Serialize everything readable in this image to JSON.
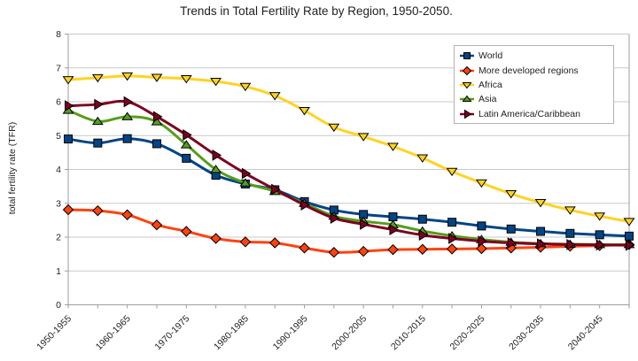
{
  "chart_data": {
    "type": "line",
    "title": "Trends in Total Fertility Rate by Region, 1950-2050.",
    "xlabel": "",
    "ylabel": "total fertility rate (TFR)",
    "ylim": [
      0,
      8
    ],
    "y_ticks": [
      0,
      1,
      2,
      3,
      4,
      5,
      6,
      7,
      8
    ],
    "grid": true,
    "legend_position": "top-right",
    "x_label_every": 2,
    "categories": [
      "1950-1955",
      "1955-1960",
      "1960-1965",
      "1965-1970",
      "1970-1975",
      "1975-1980",
      "1980-1985",
      "1985-1990",
      "1990-1995",
      "1995-2000",
      "2000-2005",
      "2005-2010",
      "2010-2015",
      "2015-2020",
      "2020-2025",
      "2025-2030",
      "2030-2035",
      "2035-2040",
      "2040-2045",
      "2045-2050"
    ],
    "shown_x_tick_labels": [
      "1950-1955",
      "1960-1965",
      "1970-1975",
      "1980-1985",
      "1990-1995",
      "2000-2005",
      "2010-2015",
      "2020-2025",
      "2030-2035",
      "2040-2045"
    ],
    "series": [
      {
        "name": "World",
        "color": "#004586",
        "marker": "square",
        "values": [
          4.9,
          4.78,
          4.91,
          4.76,
          4.33,
          3.83,
          3.57,
          3.4,
          3.05,
          2.8,
          2.67,
          2.6,
          2.53,
          2.44,
          2.33,
          2.24,
          2.17,
          2.11,
          2.07,
          2.03
        ]
      },
      {
        "name": "More developed regions",
        "color": "#FF420E",
        "marker": "diamond",
        "values": [
          2.81,
          2.78,
          2.66,
          2.36,
          2.17,
          1.96,
          1.86,
          1.83,
          1.68,
          1.55,
          1.58,
          1.63,
          1.64,
          1.65,
          1.66,
          1.68,
          1.7,
          1.73,
          1.75,
          1.78
        ]
      },
      {
        "name": "Africa",
        "color": "#FFD320",
        "marker": "triangle-down",
        "values": [
          6.65,
          6.71,
          6.76,
          6.72,
          6.68,
          6.6,
          6.45,
          6.18,
          5.74,
          5.25,
          4.97,
          4.68,
          4.34,
          3.94,
          3.6,
          3.28,
          3.02,
          2.8,
          2.62,
          2.46
        ]
      },
      {
        "name": "Asia",
        "color": "#579D1C",
        "marker": "triangle-up",
        "values": [
          5.75,
          5.42,
          5.56,
          5.41,
          4.73,
          4.0,
          3.6,
          3.35,
          3.0,
          2.62,
          2.47,
          2.37,
          2.18,
          2.04,
          1.93,
          1.85,
          1.81,
          1.79,
          1.78,
          1.78
        ]
      },
      {
        "name": "Latin America/Caribbean",
        "color": "#7E0021",
        "marker": "triangle-right",
        "values": [
          5.88,
          5.92,
          6.0,
          5.56,
          5.02,
          4.42,
          3.88,
          3.41,
          2.95,
          2.56,
          2.38,
          2.22,
          2.06,
          1.96,
          1.88,
          1.83,
          1.8,
          1.78,
          1.77,
          1.76
        ]
      }
    ]
  }
}
